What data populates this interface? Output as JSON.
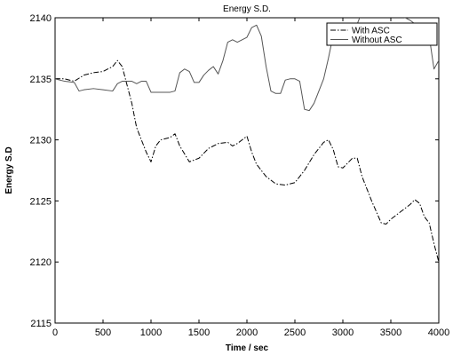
{
  "chart_data": {
    "type": "line",
    "title": "Energy S.D.",
    "xlabel": "Time / sec",
    "ylabel": "Energy S.D",
    "xlim": [
      0,
      4000
    ],
    "ylim": [
      2115,
      2140
    ],
    "xticks": [
      0,
      500,
      1000,
      1500,
      2000,
      2500,
      3000,
      3500,
      4000
    ],
    "yticks": [
      2115,
      2120,
      2125,
      2130,
      2135,
      2140
    ],
    "grid": false,
    "legend": "top-right",
    "series": [
      {
        "name": "With ASC",
        "style": "dashdot",
        "color": "#000000",
        "x": [
          0,
          100,
          200,
          300,
          400,
          500,
          600,
          650,
          700,
          800,
          850,
          900,
          950,
          1000,
          1050,
          1100,
          1200,
          1250,
          1300,
          1400,
          1500,
          1600,
          1700,
          1800,
          1850,
          1900,
          2000,
          2050,
          2100,
          2200,
          2300,
          2400,
          2500,
          2550,
          2600,
          2700,
          2800,
          2850,
          2900,
          2950,
          3000,
          3100,
          3150,
          3200,
          3300,
          3400,
          3450,
          3500,
          3600,
          3700,
          3750,
          3800,
          3850,
          3900,
          3950,
          4000
        ],
        "y": [
          2135,
          2135,
          2134.8,
          2135.3,
          2135.5,
          2135.6,
          2136,
          2136.5,
          2136,
          2133,
          2131,
          2130,
          2129,
          2128.2,
          2129.5,
          2130,
          2130.2,
          2130.5,
          2129.5,
          2128.2,
          2128.5,
          2129.3,
          2129.7,
          2129.8,
          2129.5,
          2129.7,
          2130.3,
          2129,
          2128,
          2127,
          2126.4,
          2126.3,
          2126.5,
          2127,
          2127.5,
          2128.8,
          2129.8,
          2130,
          2129.2,
          2127.8,
          2127.7,
          2128.5,
          2128.5,
          2127,
          2125,
          2123.2,
          2123.1,
          2123.5,
          2124.1,
          2124.7,
          2125.1,
          2124.8,
          2123.7,
          2123.2,
          2121.5,
          2120
        ]
      },
      {
        "name": "Without ASC",
        "style": "solid",
        "color": "#555555",
        "x": [
          0,
          100,
          200,
          250,
          300,
          400,
          500,
          600,
          650,
          700,
          800,
          850,
          900,
          950,
          1000,
          1050,
          1100,
          1150,
          1200,
          1250,
          1300,
          1350,
          1400,
          1450,
          1500,
          1550,
          1600,
          1650,
          1700,
          1750,
          1800,
          1850,
          1900,
          1950,
          2000,
          2050,
          2100,
          2150,
          2200,
          2250,
          2300,
          2350,
          2400,
          2450,
          2500,
          2550,
          2600,
          2650,
          2700,
          2750,
          2800,
          2850,
          2900,
          2950,
          3000,
          3050,
          3100,
          3150,
          3200,
          3250,
          3300,
          3350,
          3400,
          3450,
          3500,
          3550,
          3600,
          3650,
          3700,
          3750,
          3800,
          3850,
          3900,
          3950,
          4000
        ],
        "y": [
          2135,
          2134.8,
          2134.7,
          2134,
          2134.1,
          2134.2,
          2134.1,
          2134,
          2134.6,
          2134.8,
          2134.8,
          2134.6,
          2134.8,
          2134.8,
          2133.9,
          2133.9,
          2133.9,
          2133.9,
          2133.9,
          2134,
          2135.5,
          2135.8,
          2135.6,
          2134.7,
          2134.7,
          2135.3,
          2135.7,
          2136,
          2135.4,
          2136.5,
          2138,
          2138.2,
          2138,
          2138.2,
          2138.4,
          2139.2,
          2139.4,
          2138.5,
          2136,
          2134,
          2133.8,
          2133.8,
          2134.9,
          2135,
          2135,
          2134.8,
          2132.5,
          2132.4,
          2133,
          2134,
          2135,
          2136.7,
          2138.6,
          2139.2,
          2139,
          2139,
          2139,
          2139.5,
          2140.5,
          2141,
          2141.5,
          2141,
          2141,
          2141.3,
          2141,
          2140.5,
          2140.2,
          2140,
          2139.8,
          2139.5,
          2139.5,
          2138.8,
          2138.5,
          2135.8,
          2136.5
        ]
      }
    ]
  }
}
